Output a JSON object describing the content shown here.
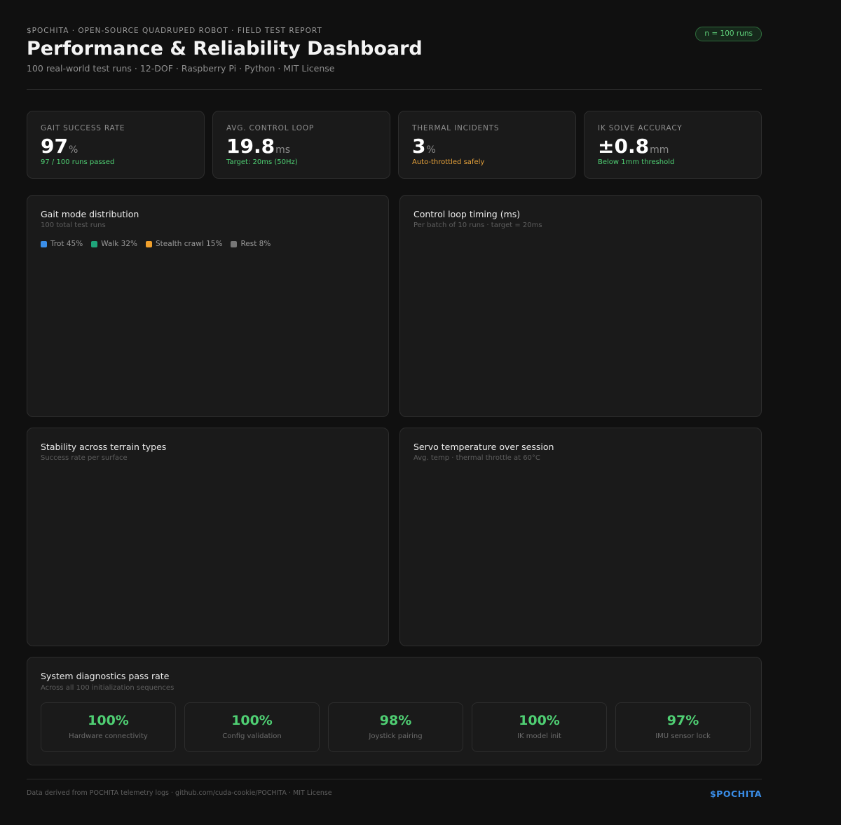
{
  "header": {
    "eyebrow": "$POCHITA · OPEN-SOURCE QUADRUPED ROBOT · FIELD TEST REPORT",
    "title": "Performance & Reliability Dashboard",
    "subtitle": "100 real-world test runs · 12-DOF · Raspberry Pi · Python · MIT License",
    "badge": "n = 100 runs"
  },
  "kpis": [
    {
      "label": "GAIT SUCCESS RATE",
      "value": "97",
      "unit": "%",
      "note": "97 / 100 runs passed",
      "note_color": "#4fcf73"
    },
    {
      "label": "AVG. CONTROL LOOP",
      "value": "19.8",
      "unit": "ms",
      "note": "Target: 20ms (50Hz)",
      "note_color": "#4fcf73"
    },
    {
      "label": "THERMAL INCIDENTS",
      "value": "3",
      "unit": "%",
      "note": "Auto-throttled safely",
      "note_color": "#e6a23b"
    },
    {
      "label": "IK SOLVE ACCURACY",
      "value": "±0.8",
      "unit": "mm",
      "note": "Below 1mm threshold",
      "note_color": "#4fcf73"
    }
  ],
  "charts": {
    "gait": {
      "title": "Gait mode distribution",
      "subtitle": "100 total test runs",
      "legend": [
        {
          "label": "Trot 45%",
          "color": "#3a8ee8"
        },
        {
          "label": "Walk 32%",
          "color": "#1fa57a"
        },
        {
          "label": "Stealth crawl 15%",
          "color": "#f0a02c"
        },
        {
          "label": "Rest 8%",
          "color": "#777777"
        }
      ]
    },
    "loop": {
      "title": "Control loop timing (ms)",
      "subtitle": "Per batch of 10 runs · target = 20ms"
    },
    "terrain": {
      "title": "Stability across terrain types",
      "subtitle": "Success rate per surface"
    },
    "servo": {
      "title": "Servo temperature over session",
      "subtitle": "Avg. temp · thermal throttle at 60°C"
    }
  },
  "diagnostics": {
    "title": "System diagnostics pass rate",
    "subtitle": "Across all 100 initialization sequences",
    "items": [
      {
        "value": "100%",
        "label": "Hardware connectivity"
      },
      {
        "value": "100%",
        "label": "Config validation"
      },
      {
        "value": "98%",
        "label": "Joystick pairing"
      },
      {
        "value": "100%",
        "label": "IK model init"
      },
      {
        "value": "97%",
        "label": "IMU sensor lock"
      }
    ]
  },
  "footer": {
    "text": "Data derived from POCHITA telemetry logs · github.com/cuda-cookie/POCHITA · MIT License",
    "brand": "$POCHITA"
  }
}
